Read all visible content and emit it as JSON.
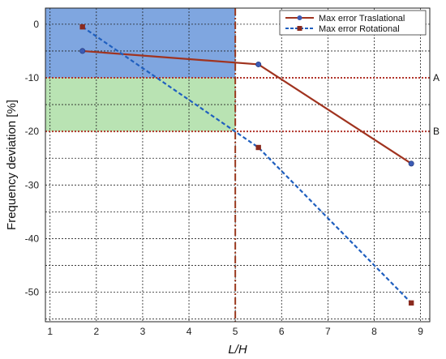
{
  "chart_data": {
    "type": "line",
    "xlabel": "L/H",
    "ylabel": "Frequency deviation [%]",
    "xlim": [
      0.9,
      9.2
    ],
    "ylim": [
      -55.5,
      3
    ],
    "xticks": [
      1,
      2,
      3,
      4,
      5,
      6,
      7,
      8,
      9
    ],
    "yticks": [
      0,
      -10,
      -20,
      -30,
      -40,
      -50
    ],
    "grid": true,
    "legend_position": "top-right",
    "series": [
      {
        "name": "Max error Traslational",
        "color": "#a0331f",
        "line_style": "solid",
        "marker": "circle",
        "marker_color": "#3b5bb5",
        "x": [
          1.7,
          5.5,
          8.8
        ],
        "y": [
          -5,
          -7.5,
          -26
        ]
      },
      {
        "name": "Max error Rotational",
        "color": "#1f5fbf",
        "line_style": "dashed",
        "marker": "square",
        "marker_color": "#8a2a1e",
        "x": [
          1.7,
          5.5,
          8.8
        ],
        "y": [
          -0.5,
          -23,
          -52
        ]
      }
    ],
    "shaded_regions": [
      {
        "x": [
          0.9,
          5
        ],
        "y": [
          -10,
          3
        ],
        "color": "#7fa6e0"
      },
      {
        "x": [
          0.9,
          5
        ],
        "y": [
          -20,
          -10
        ],
        "color": "#b9e3b3"
      }
    ],
    "reference_lines": [
      {
        "orientation": "horizontal",
        "value": -10,
        "label": "A",
        "color": "#b0342a",
        "style": "dotted"
      },
      {
        "orientation": "horizontal",
        "value": -20,
        "label": "B",
        "color": "#b0342a",
        "style": "dotted"
      },
      {
        "orientation": "vertical",
        "value": 5,
        "label": "",
        "color": "#9b3a20",
        "style": "dashdot"
      }
    ]
  }
}
